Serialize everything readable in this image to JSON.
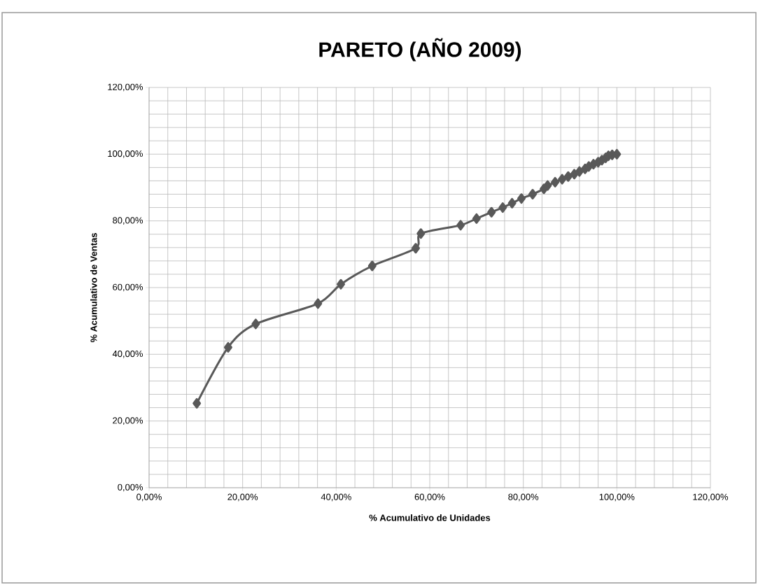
{
  "chart_data": {
    "type": "line",
    "title": "PARETO (AÑO 2009)",
    "xlabel": "% Acumulativo de Unidades",
    "ylabel": "% Acumulativo de Ventas",
    "x": [
      10.2,
      16.9,
      22.8,
      36.1,
      41.0,
      47.7,
      57.0,
      58.1,
      66.6,
      70.0,
      73.2,
      75.6,
      77.6,
      79.6,
      82.0,
      84.4,
      85.2,
      86.8,
      88.3,
      89.6,
      90.9,
      92.0,
      93.2,
      94.0,
      95.0,
      96.0,
      96.8,
      97.6,
      98.2,
      99.0,
      100
    ],
    "series": [
      {
        "color": "#595959",
        "values": [
          25.3,
          42.1,
          49.1,
          55.2,
          61.0,
          66.5,
          71.8,
          76.2,
          78.7,
          80.7,
          82.6,
          84.0,
          85.3,
          86.7,
          88.0,
          89.6,
          90.6,
          91.6,
          92.5,
          93.3,
          94.0,
          94.8,
          95.6,
          96.3,
          97.0,
          97.6,
          98.2,
          98.9,
          99.5,
          99.8,
          100
        ]
      }
    ],
    "xlim": [
      0,
      120
    ],
    "ylim": [
      0,
      120
    ],
    "xticks": [
      {
        "value": 0,
        "label": "0,00%"
      },
      {
        "value": 20,
        "label": "20,00%"
      },
      {
        "value": 40,
        "label": "40,00%"
      },
      {
        "value": 60,
        "label": "60,00%"
      },
      {
        "value": 80,
        "label": "80,00%"
      },
      {
        "value": 100,
        "label": "100,00%"
      },
      {
        "value": 120,
        "label": "120,00%"
      }
    ],
    "yticks": [
      {
        "value": 0,
        "label": "0,00%"
      },
      {
        "value": 20,
        "label": "20,00%"
      },
      {
        "value": 40,
        "label": "40,00%"
      },
      {
        "value": 60,
        "label": "60,00%"
      },
      {
        "value": 80,
        "label": "80,00%"
      },
      {
        "value": 100,
        "label": "100,00%"
      },
      {
        "value": 120,
        "label": "120,00%"
      }
    ],
    "grid": true,
    "marker": "diamond",
    "line_style": "solid"
  }
}
